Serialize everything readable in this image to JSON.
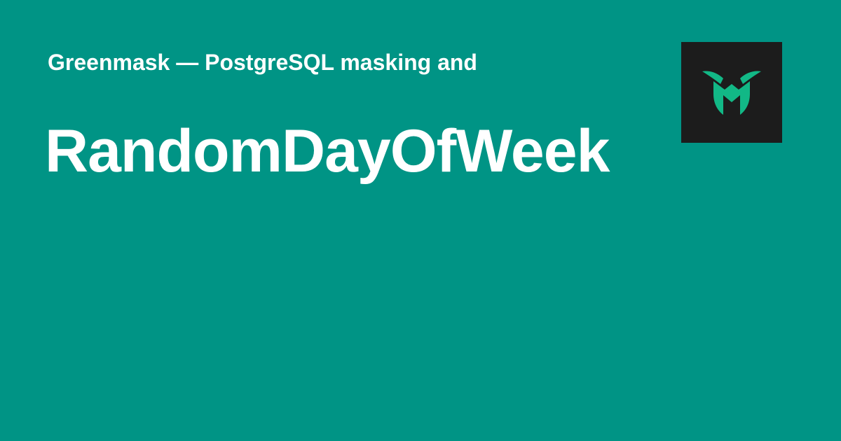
{
  "header": {
    "site_name": "Greenmask — PostgreSQL masking and"
  },
  "main": {
    "title": "RandomDayOfWeek"
  },
  "logo": {
    "icon": "greenmask-logo-icon",
    "background_color": "#1c1c1c",
    "mark_color": "#12b886"
  },
  "colors": {
    "background": "#009485",
    "text": "#ffffff"
  }
}
